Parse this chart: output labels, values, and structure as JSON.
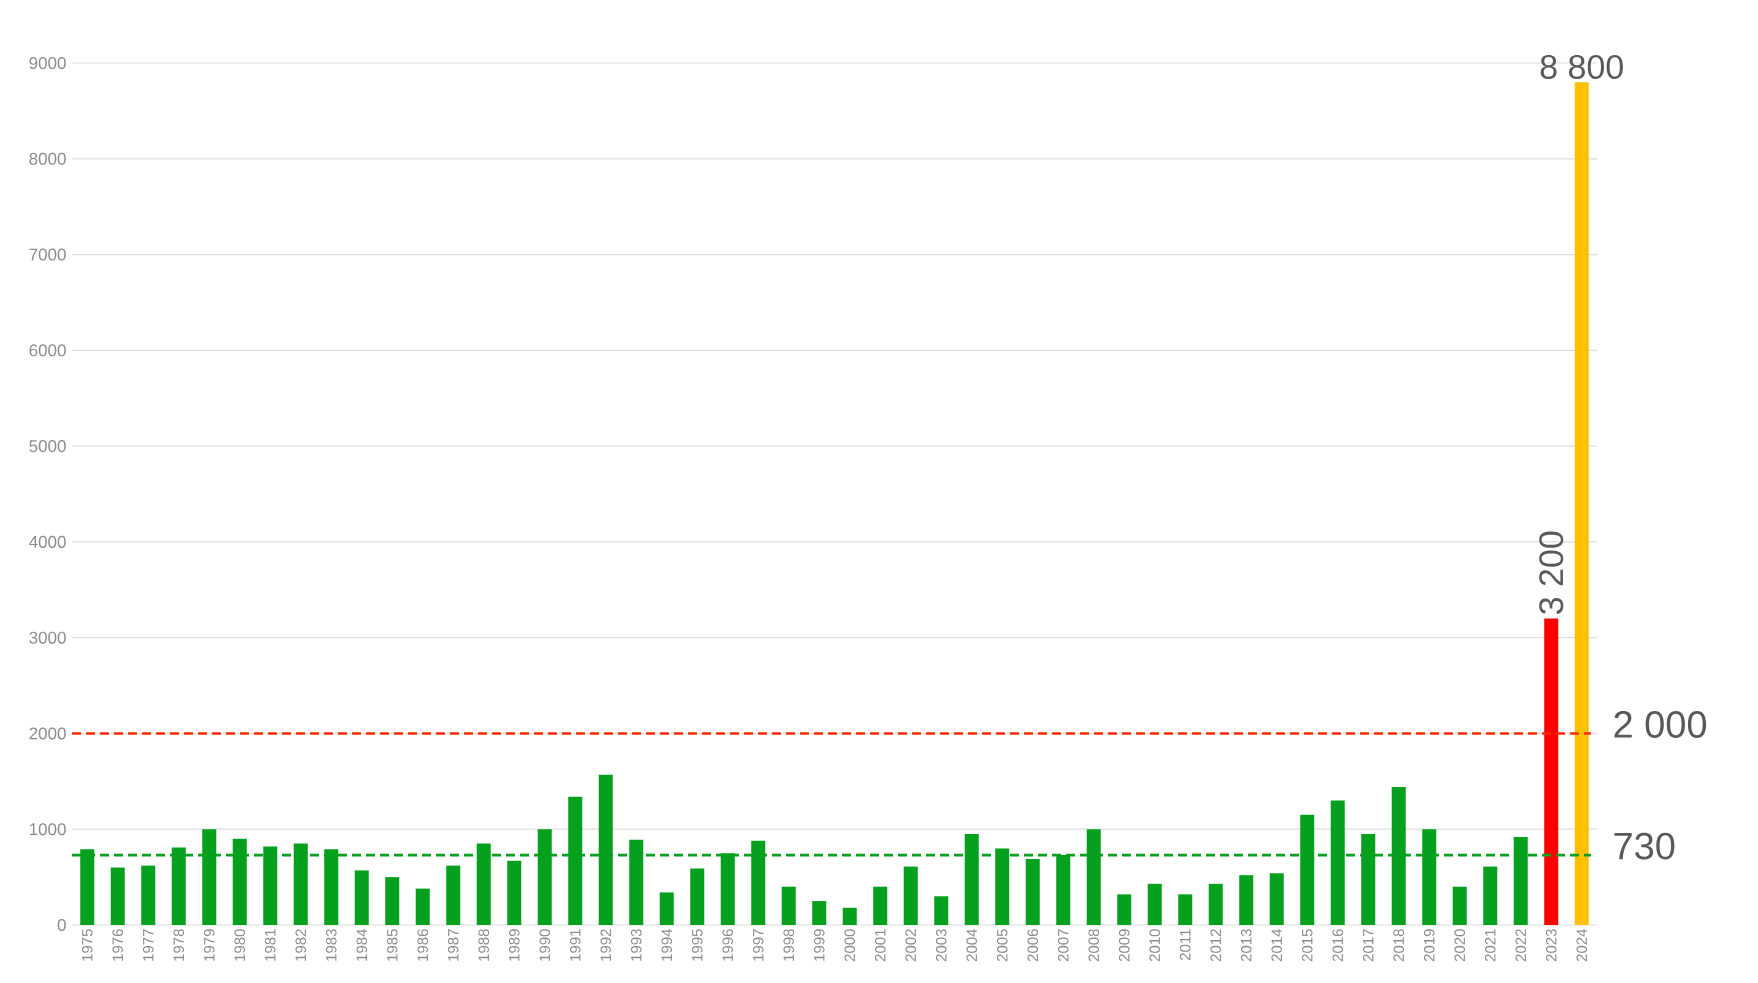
{
  "chart_data": {
    "type": "bar",
    "categories": [
      "1975",
      "1976",
      "1977",
      "1978",
      "1979",
      "1980",
      "1981",
      "1982",
      "1983",
      "1984",
      "1985",
      "1986",
      "1987",
      "1988",
      "1989",
      "1990",
      "1991",
      "1992",
      "1993",
      "1994",
      "1995",
      "1996",
      "1997",
      "1998",
      "1999",
      "2000",
      "2001",
      "2002",
      "2003",
      "2004",
      "2005",
      "2006",
      "2007",
      "2008",
      "2009",
      "2010",
      "2011",
      "2012",
      "2013",
      "2014",
      "2015",
      "2016",
      "2017",
      "2018",
      "2019",
      "2020",
      "2021",
      "2022",
      "2023",
      "2024"
    ],
    "values": [
      790,
      600,
      620,
      810,
      1000,
      900,
      820,
      850,
      790,
      570,
      500,
      380,
      620,
      850,
      670,
      1000,
      1340,
      1570,
      890,
      340,
      590,
      750,
      880,
      400,
      250,
      180,
      400,
      610,
      300,
      950,
      800,
      690,
      730,
      1000,
      320,
      430,
      320,
      430,
      520,
      540,
      1150,
      1300,
      950,
      1440,
      1000,
      400,
      610,
      920,
      3200,
      8800
    ],
    "colors": [
      "#04a01e",
      "#04a01e",
      "#04a01e",
      "#04a01e",
      "#04a01e",
      "#04a01e",
      "#04a01e",
      "#04a01e",
      "#04a01e",
      "#04a01e",
      "#04a01e",
      "#04a01e",
      "#04a01e",
      "#04a01e",
      "#04a01e",
      "#04a01e",
      "#04a01e",
      "#04a01e",
      "#04a01e",
      "#04a01e",
      "#04a01e",
      "#04a01e",
      "#04a01e",
      "#04a01e",
      "#04a01e",
      "#04a01e",
      "#04a01e",
      "#04a01e",
      "#04a01e",
      "#04a01e",
      "#04a01e",
      "#04a01e",
      "#04a01e",
      "#04a01e",
      "#04a01e",
      "#04a01e",
      "#04a01e",
      "#04a01e",
      "#04a01e",
      "#04a01e",
      "#04a01e",
      "#04a01e",
      "#04a01e",
      "#04a01e",
      "#04a01e",
      "#04a01e",
      "#04a01e",
      "#04a01e",
      "#ff0000",
      "#ffc000"
    ],
    "value_labels": [
      null,
      null,
      null,
      null,
      null,
      null,
      null,
      null,
      null,
      null,
      null,
      null,
      null,
      null,
      null,
      null,
      null,
      null,
      null,
      null,
      null,
      null,
      null,
      null,
      null,
      null,
      null,
      null,
      null,
      null,
      null,
      null,
      null,
      null,
      null,
      null,
      null,
      null,
      null,
      null,
      null,
      null,
      null,
      null,
      null,
      null,
      null,
      null,
      "3 200",
      "8 800"
    ],
    "ylim": [
      0,
      9000
    ],
    "yticks": [
      0,
      1000,
      2000,
      3000,
      4000,
      5000,
      6000,
      7000,
      8000,
      9000
    ],
    "grid": "y",
    "ref_lines": [
      {
        "axis": "y",
        "value": 2000,
        "label": "2 000",
        "color": "#ff2a00",
        "line_style": "dashed"
      },
      {
        "axis": "y",
        "value": 730,
        "label": "730",
        "color": "#04a01e",
        "line_style": "dashed"
      }
    ]
  }
}
